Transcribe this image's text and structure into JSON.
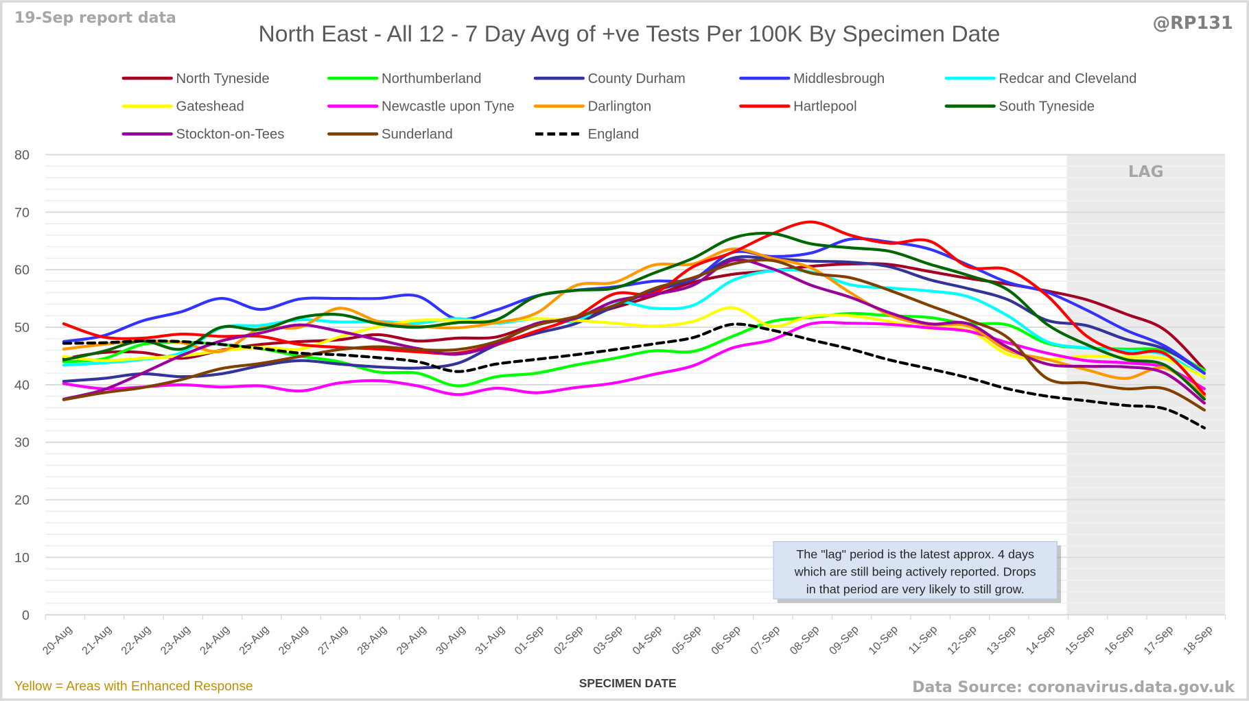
{
  "header": {
    "report_label": "19-Sep report data",
    "handle": "@RP131"
  },
  "footer": {
    "note": "Yellow = Areas with Enhanced Response",
    "source": "Data Source: coronavirus.data.gov.uk"
  },
  "annotation": {
    "lag_label": "LAG",
    "lag_start": "15-Sep",
    "lines": [
      "The \"lag\" period is the latest approx. 4 days",
      "which are still being actively reported.  Drops",
      "in that period are very likely to still grow."
    ],
    "lag_fill": "#ebebeb",
    "note_fill": "#dae3f3"
  },
  "chart_data": {
    "type": "line",
    "title": "North East - All 12 - 7 Day Avg of +ve Tests Per 100K By Specimen Date",
    "xlabel": "SPECIMEN DATE",
    "ylabel": "",
    "ylim": [
      0,
      80
    ],
    "yticks": [
      0,
      10,
      20,
      30,
      40,
      50,
      60,
      70,
      80
    ],
    "grid": "major every 10, minor every 2",
    "legend_position": "top",
    "x": [
      "20-Aug",
      "21-Aug",
      "22-Aug",
      "23-Aug",
      "24-Aug",
      "25-Aug",
      "26-Aug",
      "27-Aug",
      "28-Aug",
      "29-Aug",
      "30-Aug",
      "31-Aug",
      "01-Sep",
      "02-Sep",
      "03-Sep",
      "04-Sep",
      "05-Sep",
      "06-Sep",
      "07-Sep",
      "08-Sep",
      "09-Sep",
      "10-Sep",
      "11-Sep",
      "12-Sep",
      "13-Sep",
      "14-Sep",
      "15-Sep",
      "16-Sep",
      "17-Sep",
      "18-Sep"
    ],
    "series": [
      {
        "name": "North Tyneside",
        "color": "#a50021",
        "dashed": false,
        "values": [
          44.5,
          45.6,
          45.6,
          44.6,
          46.0,
          47.0,
          47.5,
          47.8,
          48.7,
          47.6,
          48.1,
          48.3,
          50.5,
          51.6,
          53.4,
          55.5,
          57.8,
          59.2,
          59.8,
          60.6,
          61.0,
          60.9,
          59.7,
          58.5,
          57.5,
          56.3,
          54.8,
          52.3,
          49.5,
          42.6
        ]
      },
      {
        "name": "Northumberland",
        "color": "#00ff00",
        "dashed": false,
        "values": [
          44.0,
          44.5,
          47.0,
          47.4,
          47.0,
          46.3,
          45.0,
          44.0,
          42.2,
          42.0,
          39.8,
          41.4,
          42.0,
          43.4,
          44.6,
          45.9,
          45.8,
          48.4,
          51.0,
          51.7,
          52.4,
          52.0,
          51.7,
          50.6,
          50.4,
          47.2,
          46.4,
          46.2,
          45.9,
          42.5
        ]
      },
      {
        "name": "County Durham",
        "color": "#333399",
        "dashed": false,
        "values": [
          40.6,
          41.1,
          41.9,
          41.4,
          41.9,
          43.3,
          44.2,
          43.6,
          43.1,
          42.9,
          43.7,
          46.9,
          48.9,
          50.6,
          53.6,
          56.3,
          58.3,
          62.0,
          61.9,
          61.5,
          61.3,
          60.5,
          58.3,
          56.7,
          54.8,
          51.2,
          50.3,
          47.9,
          46.2,
          42.0
        ]
      },
      {
        "name": "Middlesbrough",
        "color": "#3333ff",
        "dashed": false,
        "values": [
          47.5,
          48.5,
          51.1,
          52.7,
          55.0,
          53.1,
          54.9,
          55.0,
          55.0,
          55.4,
          51.4,
          53.0,
          55.4,
          56.4,
          57.0,
          58.0,
          58.4,
          63.0,
          62.3,
          62.9,
          65.3,
          64.8,
          63.6,
          60.8,
          57.8,
          56.1,
          53.0,
          49.5,
          46.7,
          42.0
        ]
      },
      {
        "name": "Redcar and Cleveland",
        "color": "#00ffff",
        "dashed": false,
        "values": [
          43.4,
          43.8,
          44.4,
          45.6,
          49.9,
          50.3,
          51.3,
          50.9,
          51.0,
          50.7,
          51.5,
          50.7,
          51.5,
          51.1,
          54.4,
          53.3,
          53.8,
          58.1,
          59.8,
          59.6,
          57.4,
          56.8,
          56.3,
          55.3,
          52.0,
          47.5,
          46.4,
          45.9,
          45.2,
          41.2
        ]
      },
      {
        "name": "Gateshead",
        "color": "#ffff00",
        "dashed": false,
        "values": [
          44.9,
          44.2,
          44.6,
          45.0,
          45.9,
          46.5,
          46.2,
          48.3,
          50.1,
          51.2,
          51.2,
          51.0,
          51.5,
          51.2,
          50.7,
          50.2,
          51.0,
          53.4,
          50.2,
          51.9,
          52.0,
          51.0,
          49.8,
          49.5,
          45.3,
          44.4,
          45.0,
          44.8,
          44.5,
          41.3
        ]
      },
      {
        "name": "Newcastle upon Tyne",
        "color": "#ff00ff",
        "dashed": false,
        "values": [
          40.2,
          39.3,
          39.6,
          40.0,
          39.6,
          39.8,
          38.9,
          40.3,
          40.7,
          39.8,
          38.3,
          39.4,
          38.6,
          39.5,
          40.3,
          41.8,
          43.3,
          46.4,
          47.8,
          50.6,
          50.7,
          50.5,
          49.9,
          49.3,
          47.3,
          45.5,
          44.2,
          43.8,
          43.0,
          39.3
        ]
      },
      {
        "name": "Darlington",
        "color": "#ff9900",
        "dashed": false,
        "values": [
          46.2,
          47.0,
          47.6,
          47.3,
          45.8,
          49.8,
          50.0,
          53.3,
          51.0,
          50.2,
          49.9,
          50.8,
          52.4,
          57.2,
          57.8,
          60.8,
          61.0,
          63.6,
          62.0,
          60.3,
          56.0,
          52.1,
          50.4,
          50.2,
          46.0,
          44.4,
          42.6,
          41.1,
          42.9,
          38.0
        ]
      },
      {
        "name": "Hartlepool",
        "color": "#ff0000",
        "dashed": false,
        "values": [
          50.6,
          48.3,
          48.1,
          48.8,
          48.4,
          48.4,
          47.0,
          46.5,
          46.2,
          45.7,
          45.5,
          47.0,
          49.3,
          51.7,
          55.8,
          55.9,
          60.5,
          63.0,
          66.2,
          68.3,
          66.0,
          64.6,
          65.0,
          60.5,
          60.0,
          55.5,
          48.5,
          45.5,
          45.4,
          38.4
        ]
      },
      {
        "name": "South Tyneside",
        "color": "#006600",
        "dashed": false,
        "values": [
          44.3,
          45.8,
          47.6,
          46.2,
          50.0,
          49.6,
          51.7,
          52.2,
          50.6,
          50.0,
          50.8,
          51.3,
          55.3,
          56.4,
          56.8,
          59.4,
          62.0,
          65.5,
          66.3,
          64.5,
          63.8,
          63.2,
          61.0,
          59.0,
          56.5,
          50.5,
          47.0,
          44.4,
          43.4,
          37.5
        ]
      },
      {
        "name": "Stockton-on-Tees",
        "color": "#990099",
        "dashed": false,
        "values": [
          37.5,
          39.1,
          42.0,
          45.1,
          47.6,
          49.0,
          50.4,
          49.3,
          47.8,
          46.3,
          45.3,
          47.1,
          50.6,
          51.5,
          54.5,
          55.7,
          57.3,
          61.6,
          60.2,
          57.3,
          55.2,
          52.5,
          50.6,
          50.6,
          46.5,
          43.6,
          43.2,
          43.1,
          42.0,
          36.8
        ]
      },
      {
        "name": "Sunderland",
        "color": "#804000",
        "dashed": false,
        "values": [
          37.4,
          38.6,
          39.5,
          40.9,
          42.8,
          43.7,
          44.9,
          46.1,
          46.6,
          46.1,
          46.1,
          47.5,
          50.3,
          51.8,
          53.8,
          56.7,
          58.6,
          61.0,
          61.6,
          59.4,
          58.6,
          56.4,
          53.8,
          51.3,
          48.2,
          41.1,
          40.3,
          39.3,
          39.3,
          35.6
        ]
      },
      {
        "name": "England",
        "color": "#000000",
        "dashed": true,
        "values": [
          47.2,
          47.3,
          47.6,
          47.5,
          47.0,
          46.3,
          45.5,
          45.2,
          44.7,
          44.0,
          42.3,
          43.6,
          44.4,
          45.2,
          46.1,
          47.1,
          48.2,
          50.5,
          49.5,
          47.8,
          46.2,
          44.3,
          42.8,
          41.2,
          39.3,
          38.0,
          37.2,
          36.4,
          35.8,
          32.5
        ]
      }
    ]
  }
}
